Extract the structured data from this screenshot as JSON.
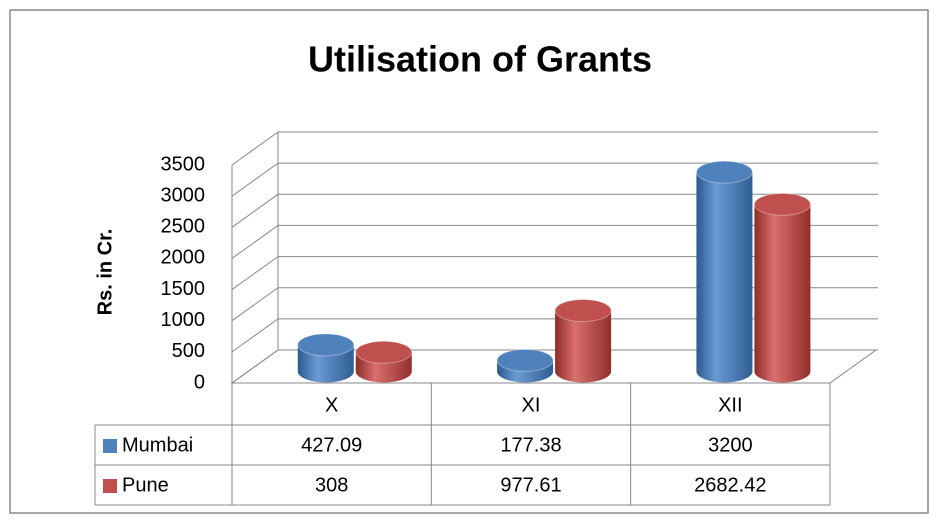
{
  "chart_data": {
    "type": "bar3d",
    "title": "Utilisation of Grants",
    "y_label": "Rs. in Cr.",
    "categories": [
      "X",
      "XI",
      "XII"
    ],
    "series": [
      {
        "name": "Mumbai",
        "color": "#4f81bd",
        "values": [
          427.09,
          177.38,
          3200
        ]
      },
      {
        "name": "Pune",
        "color": "#c0504d",
        "values": [
          308,
          977.61,
          2682.42
        ]
      }
    ],
    "ylim": [
      0,
      3500
    ],
    "yticks": [
      0,
      500,
      1000,
      1500,
      2000,
      2500,
      3000,
      3500
    ],
    "grid": true,
    "data_table": true
  }
}
